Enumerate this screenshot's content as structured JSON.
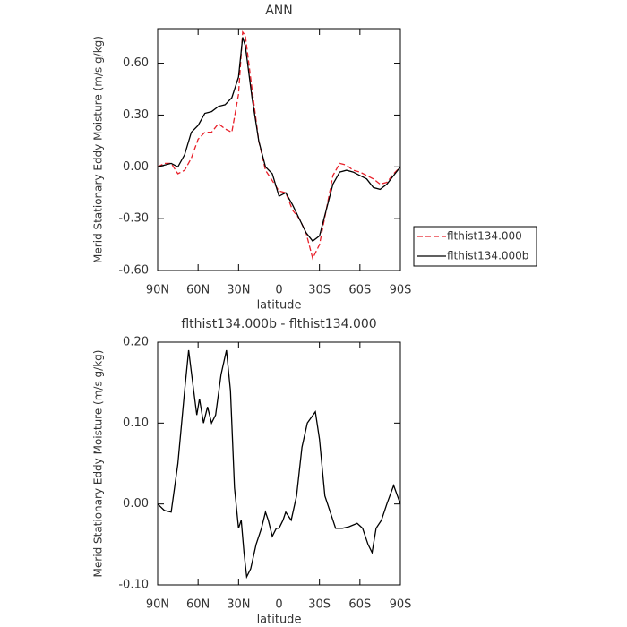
{
  "chart_data": [
    {
      "type": "line",
      "title": "ANN",
      "xlabel": "latitude",
      "ylabel": "Merid Stationary Eddy Moisture (m/s g/kg)",
      "x": [
        90,
        85,
        80,
        75,
        70,
        65,
        60,
        55,
        50,
        45,
        40,
        35,
        30,
        27,
        25,
        20,
        15,
        10,
        5,
        0,
        -5,
        -10,
        -15,
        -20,
        -25,
        -30,
        -35,
        -40,
        -45,
        -50,
        -55,
        -60,
        -65,
        -70,
        -75,
        -80,
        -85,
        -90
      ],
      "xlim": [
        90,
        -90
      ],
      "xticks": [
        {
          "value": 90,
          "label": "90N"
        },
        {
          "value": 60,
          "label": "60N"
        },
        {
          "value": 30,
          "label": "30N"
        },
        0,
        {
          "value": -30,
          "label": "30S"
        },
        {
          "value": -60,
          "label": "60S"
        },
        {
          "value": -90,
          "label": "90S"
        }
      ],
      "ylim": [
        -0.6,
        0.8
      ],
      "yticks": [
        {
          "value": -0.6,
          "label": "-0.60"
        },
        {
          "value": -0.3,
          "label": "-0.30"
        },
        {
          "value": 0,
          "label": "0.00"
        },
        {
          "value": 0.3,
          "label": "0.30"
        },
        {
          "value": 0.6,
          "label": "0.60"
        }
      ],
      "legend": "right",
      "series": [
        {
          "name": "flthist134.000",
          "color": "#e8202a",
          "dash": "dashed",
          "values": [
            0.0,
            0.02,
            0.02,
            -0.04,
            -0.02,
            0.05,
            0.16,
            0.2,
            0.2,
            0.25,
            0.22,
            0.2,
            0.42,
            0.78,
            0.76,
            0.45,
            0.15,
            -0.02,
            -0.08,
            -0.14,
            -0.15,
            -0.25,
            -0.3,
            -0.38,
            -0.53,
            -0.45,
            -0.25,
            -0.05,
            0.02,
            0.01,
            -0.02,
            -0.03,
            -0.05,
            -0.07,
            -0.1,
            -0.09,
            -0.04,
            0.0
          ]
        },
        {
          "name": "flthist134.000b",
          "color": "#000000",
          "dash": "solid",
          "values": [
            0.0,
            0.01,
            0.02,
            0.0,
            0.07,
            0.2,
            0.24,
            0.31,
            0.32,
            0.35,
            0.36,
            0.4,
            0.52,
            0.75,
            0.7,
            0.4,
            0.15,
            0.0,
            -0.04,
            -0.17,
            -0.15,
            -0.22,
            -0.3,
            -0.38,
            -0.43,
            -0.4,
            -0.25,
            -0.1,
            -0.03,
            -0.02,
            -0.03,
            -0.05,
            -0.07,
            -0.12,
            -0.13,
            -0.1,
            -0.05,
            0.0
          ]
        }
      ]
    },
    {
      "type": "line",
      "title": "flthist134.000b - flthist134.000",
      "xlabel": "latitude",
      "ylabel": "Merid Stationary Eddy Moisture (m/s g/kg)",
      "x": [
        90,
        85,
        80,
        75,
        70,
        67,
        64,
        61,
        59,
        56,
        53,
        50,
        47,
        43,
        39,
        36,
        33,
        30,
        28,
        26,
        24,
        21,
        17,
        13,
        10,
        8,
        5,
        2,
        0,
        -3,
        -5,
        -9,
        -13,
        -17,
        -21,
        -27,
        -30,
        -34,
        -38,
        -42,
        -47,
        -52,
        -58,
        -62,
        -66,
        -69,
        -72,
        -76,
        -80,
        -85,
        -90
      ],
      "xlim": [
        90,
        -90
      ],
      "xticks": [
        {
          "value": 90,
          "label": "90N"
        },
        {
          "value": 60,
          "label": "60N"
        },
        {
          "value": 30,
          "label": "30N"
        },
        0,
        {
          "value": -30,
          "label": "30S"
        },
        {
          "value": -60,
          "label": "60S"
        },
        {
          "value": -90,
          "label": "90S"
        }
      ],
      "ylim": [
        -0.1,
        0.2
      ],
      "yticks": [
        {
          "value": -0.1,
          "label": "-0.10"
        },
        {
          "value": 0,
          "label": "0.00"
        },
        {
          "value": 0.1,
          "label": "0.10"
        },
        {
          "value": 0.2,
          "label": "0.20"
        }
      ],
      "series": [
        {
          "color": "#000000",
          "dash": "solid",
          "values": [
            0.0,
            -0.008,
            -0.01,
            0.05,
            0.14,
            0.19,
            0.15,
            0.11,
            0.13,
            0.1,
            0.12,
            0.1,
            0.11,
            0.16,
            0.19,
            0.14,
            0.02,
            -0.03,
            -0.02,
            -0.06,
            -0.09,
            -0.08,
            -0.05,
            -0.03,
            -0.01,
            -0.02,
            -0.04,
            -0.03,
            -0.03,
            -0.02,
            -0.01,
            -0.02,
            0.01,
            0.07,
            0.1,
            0.114,
            0.08,
            0.01,
            -0.01,
            -0.03,
            -0.03,
            -0.028,
            -0.024,
            -0.03,
            -0.05,
            -0.06,
            -0.03,
            -0.02,
            0.0,
            0.023,
            0.0
          ]
        }
      ]
    }
  ]
}
